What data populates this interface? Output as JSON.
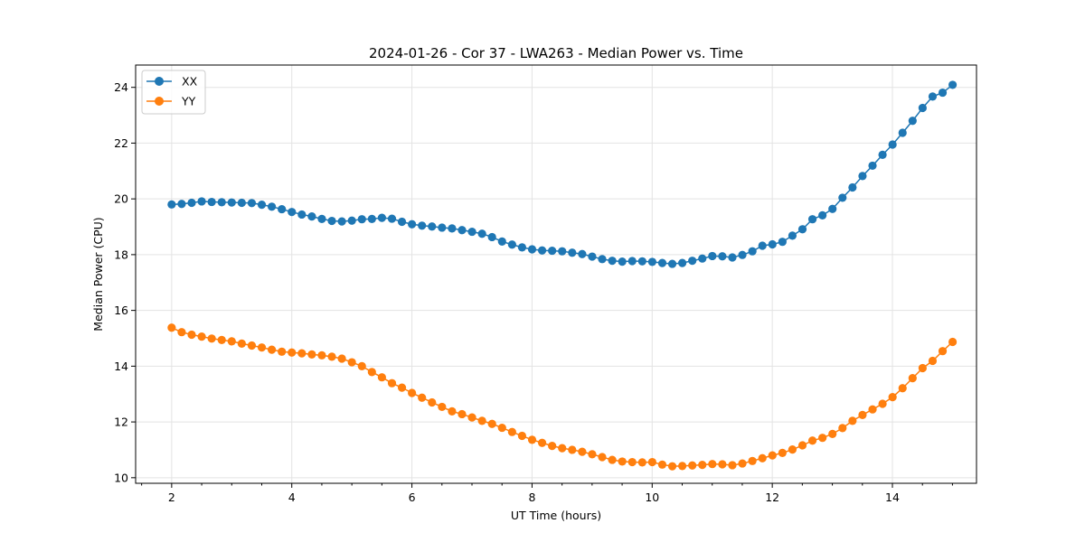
{
  "chart_data": {
    "type": "line",
    "title": "2024-01-26 - Cor 37 - LWA263 - Median Power vs. Time",
    "xlabel": "UT Time (hours)",
    "ylabel": "Median Power (CPU)",
    "xlim": [
      1.4,
      15.4
    ],
    "ylim": [
      9.8,
      24.8
    ],
    "xticks": [
      2,
      4,
      6,
      8,
      10,
      12,
      14
    ],
    "yticks": [
      10,
      12,
      14,
      16,
      18,
      20,
      22,
      24
    ],
    "xtick_labels": [
      "2",
      "4",
      "6",
      "8",
      "10",
      "12",
      "14"
    ],
    "ytick_labels": [
      "10",
      "12",
      "14",
      "16",
      "18",
      "20",
      "22",
      "24"
    ],
    "x_minor_step": 0.5,
    "grid": true,
    "legend_position": "upper-left",
    "x_start": 2.0,
    "x_step": 0.1667,
    "series": [
      {
        "name": "XX",
        "color": "#1f77b4",
        "values": [
          19.8,
          19.82,
          19.86,
          19.91,
          19.89,
          19.88,
          19.87,
          19.86,
          19.85,
          19.79,
          19.72,
          19.63,
          19.53,
          19.44,
          19.37,
          19.28,
          19.21,
          19.19,
          19.22,
          19.27,
          19.28,
          19.32,
          19.29,
          19.18,
          19.09,
          19.04,
          19.01,
          18.97,
          18.94,
          18.88,
          18.82,
          18.75,
          18.63,
          18.47,
          18.36,
          18.26,
          18.19,
          18.15,
          18.14,
          18.12,
          18.07,
          18.02,
          17.93,
          17.84,
          17.78,
          17.75,
          17.77,
          17.76,
          17.74,
          17.7,
          17.67,
          17.7,
          17.78,
          17.86,
          17.95,
          17.94,
          17.9,
          17.99,
          18.12,
          18.32,
          18.37,
          18.46,
          18.68,
          18.91,
          19.27,
          19.41,
          19.64,
          20.04,
          20.41,
          20.82,
          21.19,
          21.58,
          21.95,
          22.37,
          22.8,
          23.26,
          23.67,
          23.81,
          24.09
        ]
      },
      {
        "name": "YY",
        "color": "#ff7f0e",
        "values": [
          15.38,
          15.22,
          15.13,
          15.06,
          14.99,
          14.94,
          14.89,
          14.81,
          14.74,
          14.67,
          14.59,
          14.52,
          14.49,
          14.46,
          14.42,
          14.39,
          14.34,
          14.27,
          14.14,
          14.0,
          13.79,
          13.6,
          13.39,
          13.23,
          13.04,
          12.87,
          12.7,
          12.54,
          12.38,
          12.28,
          12.16,
          12.04,
          11.93,
          11.79,
          11.64,
          11.5,
          11.36,
          11.25,
          11.14,
          11.06,
          11.0,
          10.93,
          10.84,
          10.74,
          10.64,
          10.58,
          10.56,
          10.55,
          10.56,
          10.47,
          10.41,
          10.42,
          10.44,
          10.46,
          10.49,
          10.48,
          10.45,
          10.51,
          10.6,
          10.7,
          10.8,
          10.89,
          11.01,
          11.16,
          11.33,
          11.43,
          11.57,
          11.78,
          12.04,
          12.25,
          12.45,
          12.65,
          12.89,
          13.21,
          13.57,
          13.93,
          14.19,
          14.54,
          14.87
        ]
      }
    ]
  }
}
